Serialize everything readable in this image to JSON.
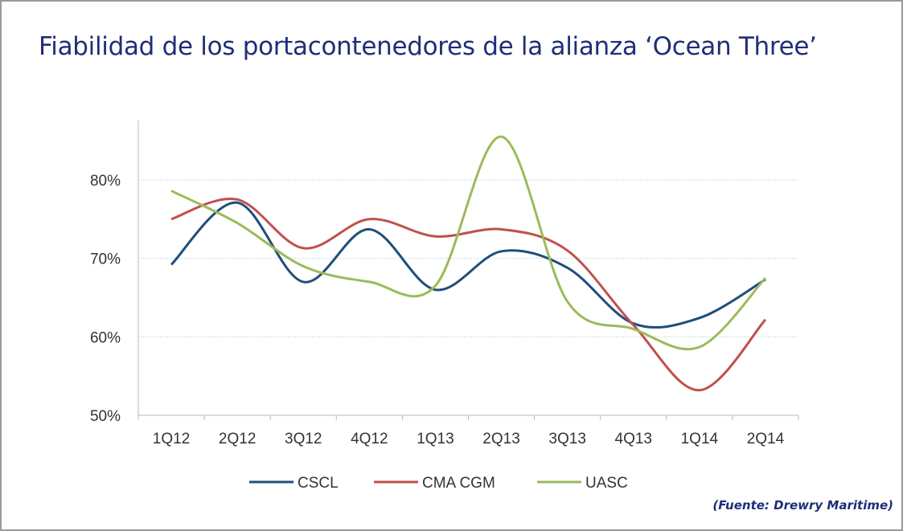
{
  "chart_data": {
    "type": "line",
    "title": "Fiabilidad de los portacontenedores de la alianza ‘Ocean Three’",
    "source": "(Fuente: Drewry Maritime)",
    "categories": [
      "1Q12",
      "2Q12",
      "3Q12",
      "4Q12",
      "1Q13",
      "2Q13",
      "3Q13",
      "4Q13",
      "1Q14",
      "2Q14"
    ],
    "ylim": [
      50,
      85
    ],
    "yticks": [
      50,
      60,
      70,
      80
    ],
    "ytick_labels": [
      "50%",
      "60%",
      "70%",
      "80%"
    ],
    "grid": true,
    "legend_position": "bottom",
    "series": [
      {
        "name": "CSCL",
        "color": "#1f4e79",
        "values": [
          69.2,
          77.1,
          67.0,
          73.7,
          66.0,
          70.9,
          68.8,
          61.7,
          62.4,
          67.3
        ]
      },
      {
        "name": "CMA CGM",
        "color": "#c0504d",
        "values": [
          75.0,
          77.5,
          71.3,
          75.0,
          72.8,
          73.7,
          71.0,
          61.5,
          53.2,
          62.2
        ]
      },
      {
        "name": "UASC",
        "color": "#9bbb59",
        "values": [
          78.6,
          74.5,
          69.0,
          67.0,
          66.5,
          85.5,
          64.5,
          61.0,
          58.7,
          67.5
        ]
      }
    ]
  }
}
